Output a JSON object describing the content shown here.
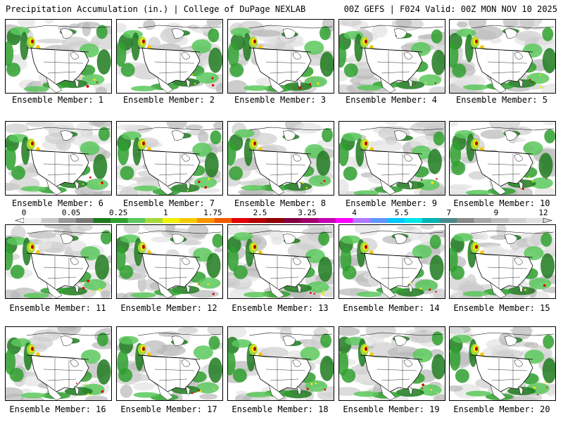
{
  "header": {
    "title": "Precipitation Accumulation (in.) | College of DuPage NEXLAB",
    "run_info": "00Z GEFS | F024 Valid: 00Z MON NOV 10 2025"
  },
  "caption_prefix": "Ensemble Member: ",
  "members": [
    "1",
    "2",
    "3",
    "4",
    "5",
    "6",
    "7",
    "8",
    "9",
    "10",
    "11",
    "12",
    "13",
    "14",
    "15",
    "16",
    "17",
    "18",
    "19",
    "20"
  ],
  "colorbar": {
    "labels": [
      "0",
      "0.05",
      "0.25",
      "1",
      "1.75",
      "2.5",
      "3.25",
      "4",
      "5.5",
      "7",
      "9",
      "12"
    ],
    "colors": [
      "#f2f2f2",
      "#c8c8c8",
      "#9a9a9a",
      "#7a7a7a",
      "#1e7a1e",
      "#2fa02f",
      "#5cc85c",
      "#a6d83a",
      "#f0f000",
      "#f7c800",
      "#f79400",
      "#f05a00",
      "#e00000",
      "#b40000",
      "#900000",
      "#800040",
      "#a0006e",
      "#c800b4",
      "#ff00ff",
      "#b478ff",
      "#6496ff",
      "#00c8ff",
      "#00e6e6",
      "#00b4b4",
      "#4a8a8a",
      "#8a8a8a",
      "#a8a8a8",
      "#bebebe",
      "#d0d0d0",
      "#e0e0e0"
    ]
  }
}
